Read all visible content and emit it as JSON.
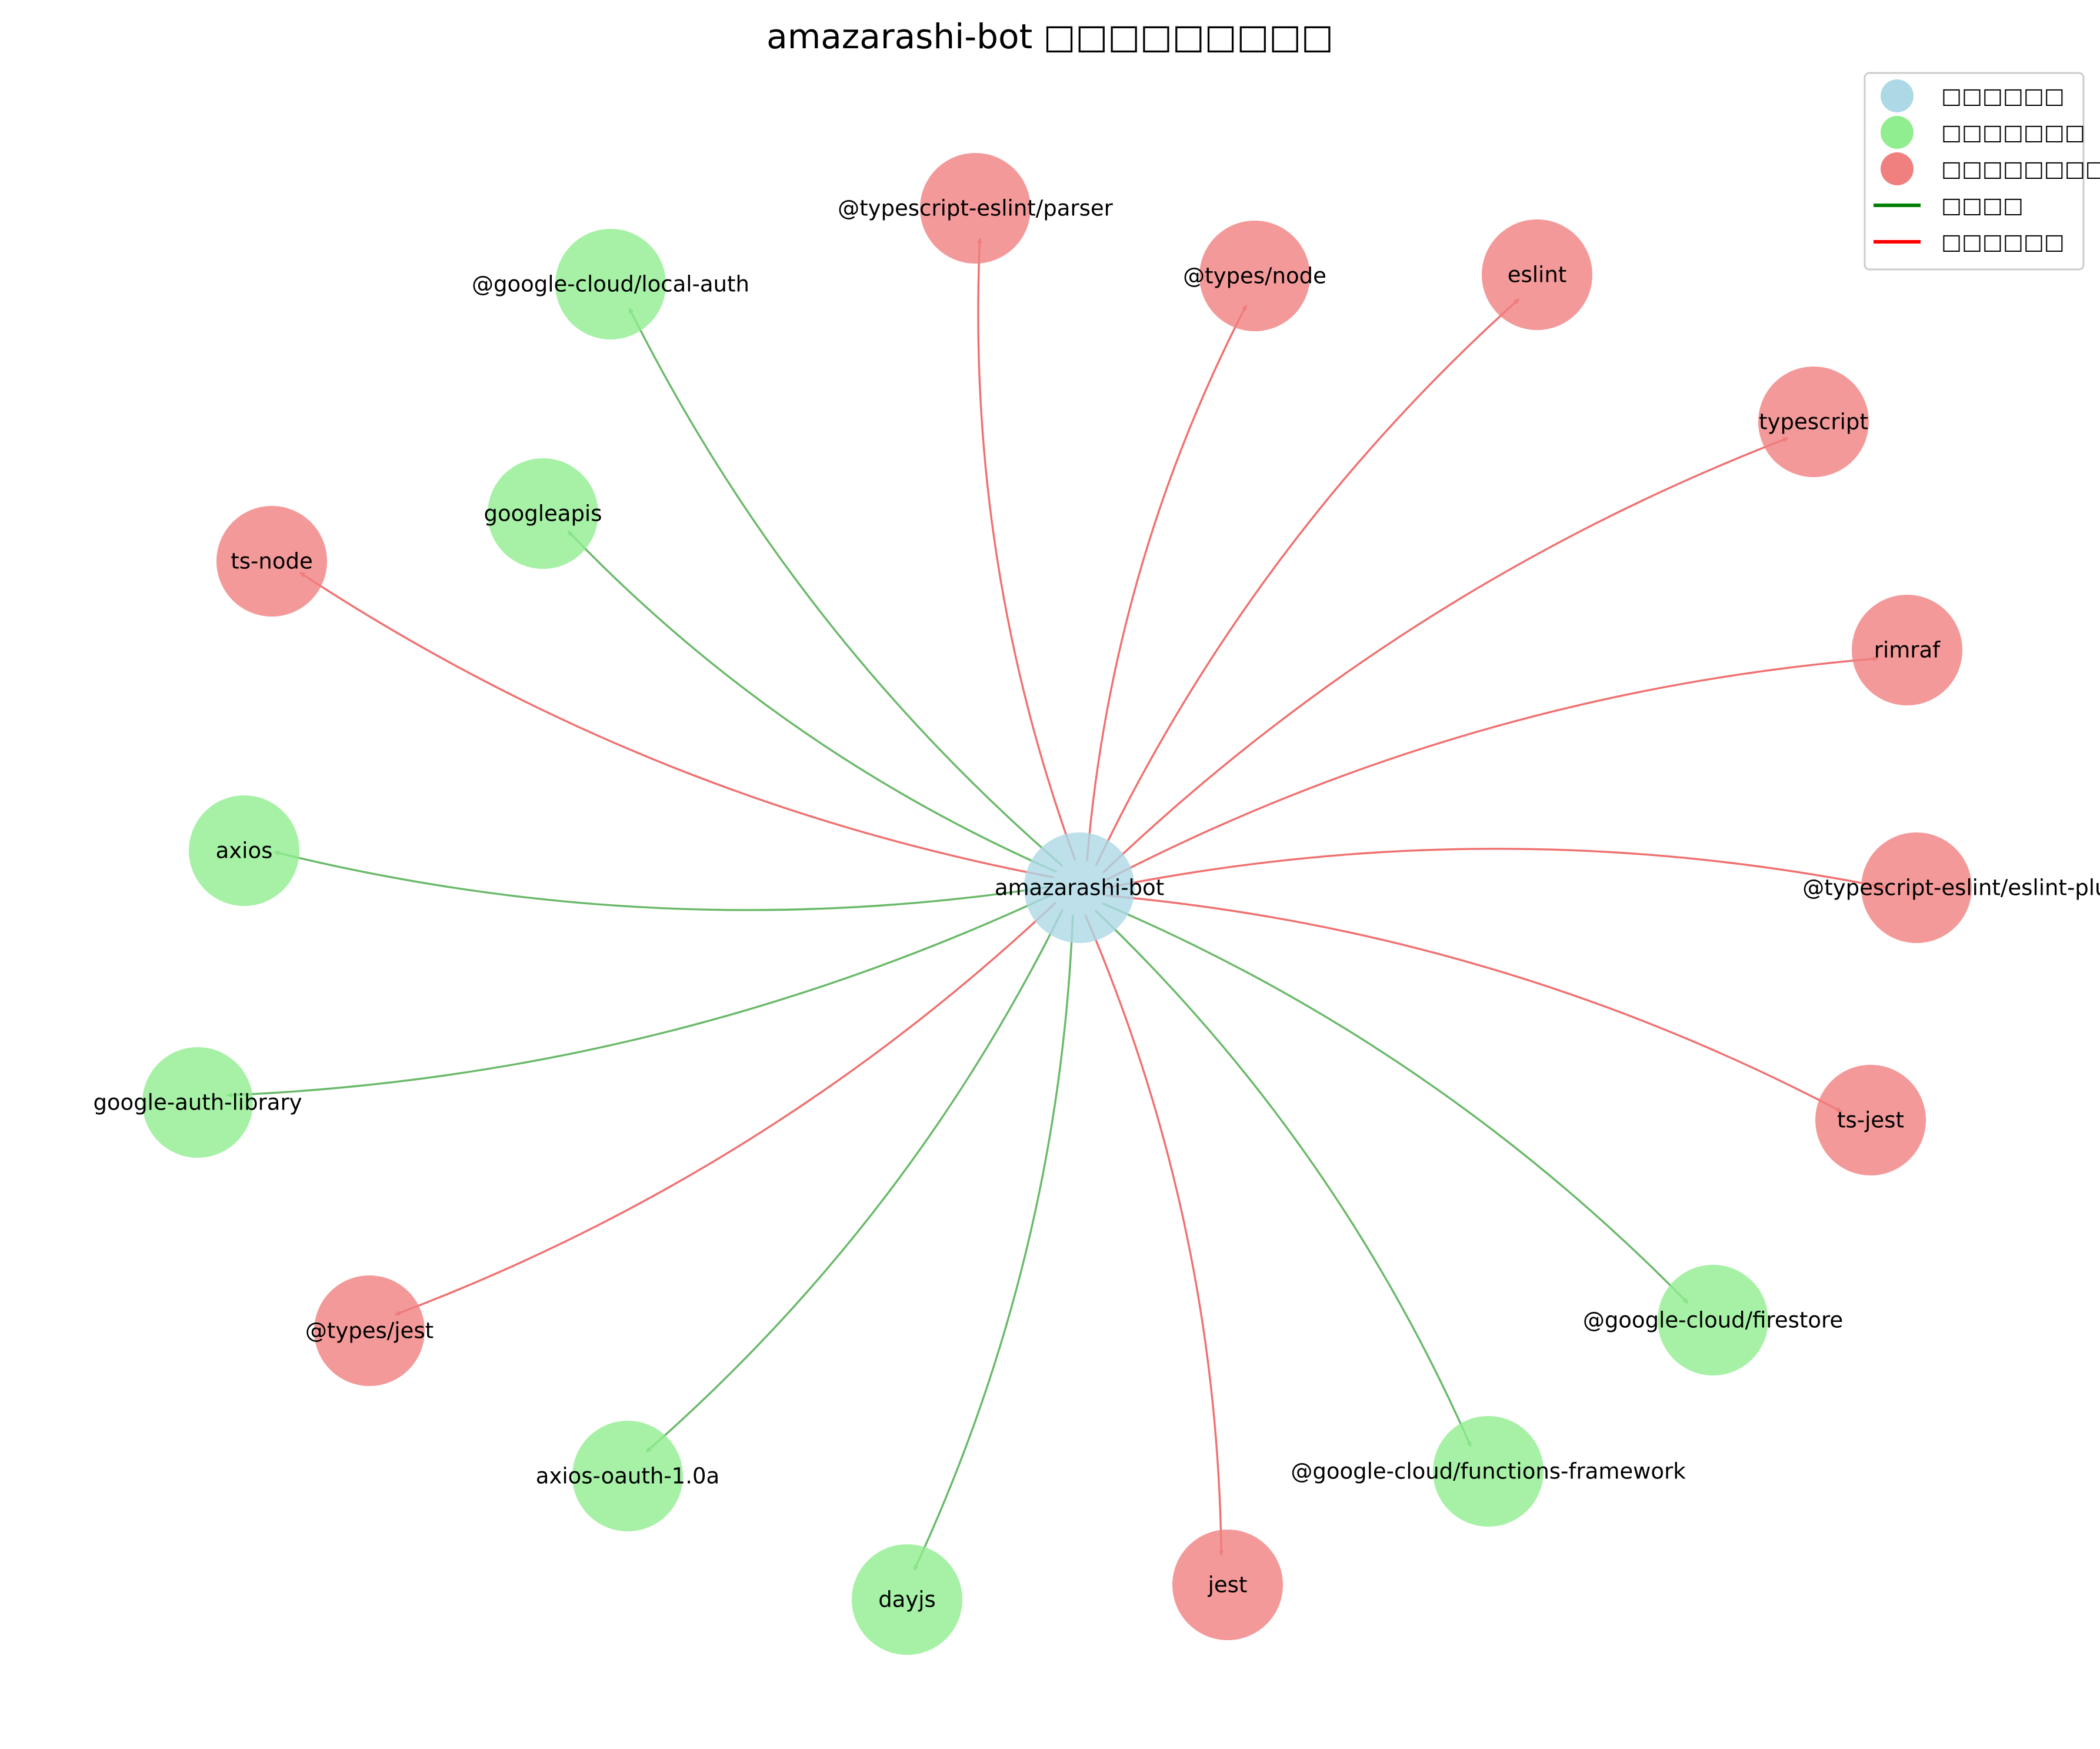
{
  "title": "amazarashi-bot □□□□□□□□□",
  "colors": {
    "main": "#add8e6",
    "dependency": "#90ee90",
    "devDependency": "#f08080",
    "dep_edge": "#6ab96a",
    "dev_edge": "#f07070",
    "legend_dep_line": "#008000",
    "legend_dev_line": "#ff0000"
  },
  "legend": [
    {
      "kind": "circle",
      "color": "#add8e6",
      "label": "□□□□□□"
    },
    {
      "kind": "circle",
      "color": "#90ee90",
      "label": "□□□□□□□"
    },
    {
      "kind": "circle",
      "color": "#f08080",
      "label": "□□□□□□□□□□"
    },
    {
      "kind": "line",
      "color": "#008000",
      "label": "□□□□"
    },
    {
      "kind": "line",
      "color": "#ff0000",
      "label": "□□□□□□"
    }
  ],
  "graph": {
    "center": "amazarashi-bot",
    "nodes": [
      {
        "id": "@typescript-eslint/parser",
        "type": "devDependency"
      },
      {
        "id": "@google-cloud/local-auth",
        "type": "dependency"
      },
      {
        "id": "@types/node",
        "type": "devDependency"
      },
      {
        "id": "eslint",
        "type": "devDependency"
      },
      {
        "id": "typescript",
        "type": "devDependency"
      },
      {
        "id": "googleapis",
        "type": "dependency"
      },
      {
        "id": "ts-node",
        "type": "devDependency"
      },
      {
        "id": "rimraf",
        "type": "devDependency"
      },
      {
        "id": "axios",
        "type": "dependency"
      },
      {
        "id": "@typescript-eslint/eslint-plugin",
        "type": "devDependency"
      },
      {
        "id": "google-auth-library",
        "type": "dependency"
      },
      {
        "id": "ts-jest",
        "type": "devDependency"
      },
      {
        "id": "@types/jest",
        "type": "devDependency"
      },
      {
        "id": "@google-cloud/firestore",
        "type": "dependency"
      },
      {
        "id": "axios-oauth-1.0a",
        "type": "dependency"
      },
      {
        "id": "@google-cloud/functions-framework",
        "type": "dependency"
      },
      {
        "id": "jest",
        "type": "devDependency"
      },
      {
        "id": "dayjs",
        "type": "dependency"
      }
    ]
  }
}
